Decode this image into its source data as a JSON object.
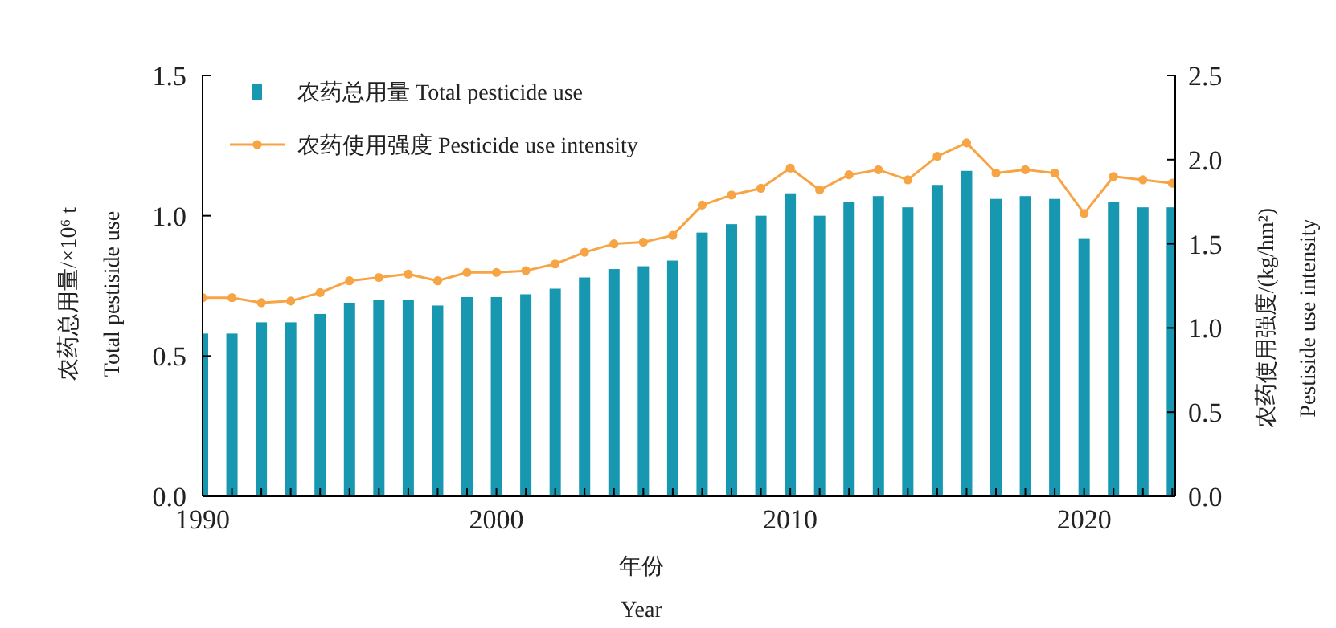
{
  "chart_data": {
    "type": "bar",
    "xlabel": "年份\nYear",
    "ylabel": "农药总用量/×10⁶ t\nTotal pestiside use",
    "y2label": "农药使用强度/(kg/hm²)\nPestiside use intensity",
    "x": [
      1990,
      1991,
      1992,
      1993,
      1994,
      1995,
      1996,
      1997,
      1998,
      1999,
      2000,
      2001,
      2002,
      2003,
      2004,
      2005,
      2006,
      2007,
      2008,
      2009,
      2010,
      2011,
      2012,
      2013,
      2014,
      2015,
      2016,
      2017,
      2018,
      2019,
      2020,
      2021,
      2022,
      2023
    ],
    "xlim": [
      1990,
      2023.1
    ],
    "xticks": [
      1990,
      {
        "value": 1991,
        "label": null
      },
      {
        "value": 1992,
        "label": null
      },
      {
        "value": 1993,
        "label": null
      },
      {
        "value": 1994,
        "label": null
      },
      {
        "value": 1995,
        "label": null
      },
      {
        "value": 1996,
        "label": null
      },
      {
        "value": 1997,
        "label": null
      },
      {
        "value": 1998,
        "label": null
      },
      {
        "value": 1999,
        "label": null
      },
      2000,
      {
        "value": 2001,
        "label": null
      },
      {
        "value": 2002,
        "label": null
      },
      {
        "value": 2003,
        "label": null
      },
      {
        "value": 2004,
        "label": null
      },
      {
        "value": 2005,
        "label": null
      },
      {
        "value": 2006,
        "label": null
      },
      {
        "value": 2007,
        "label": null
      },
      {
        "value": 2008,
        "label": null
      },
      {
        "value": 2009,
        "label": null
      },
      2010,
      {
        "value": 2011,
        "label": null
      },
      {
        "value": 2012,
        "label": null
      },
      {
        "value": 2013,
        "label": null
      },
      {
        "value": 2014,
        "label": null
      },
      {
        "value": 2015,
        "label": null
      },
      {
        "value": 2016,
        "label": null
      },
      {
        "value": 2017,
        "label": null
      },
      {
        "value": 2018,
        "label": null
      },
      {
        "value": 2019,
        "label": null
      },
      2020,
      {
        "value": 2021,
        "label": null
      },
      {
        "value": 2022,
        "label": null
      },
      {
        "value": 2023,
        "label": null
      }
    ],
    "ylim": [
      0,
      1.5
    ],
    "yticks": [
      {
        "value": 0,
        "label": "0.0"
      },
      {
        "value": 0.5,
        "label": "0.5"
      },
      {
        "value": 1,
        "label": "1.0"
      },
      {
        "value": 1.5,
        "label": "1.5"
      }
    ],
    "y2lim": [
      0,
      2.5
    ],
    "y2ticks": [
      {
        "value": 0,
        "label": "0.0"
      },
      {
        "value": 0.5,
        "label": "0.5"
      },
      {
        "value": 1,
        "label": "1.0"
      },
      {
        "value": 1.5,
        "label": "1.5"
      },
      {
        "value": 2,
        "label": "2.0"
      },
      {
        "value": 2.5,
        "label": "2.5"
      }
    ],
    "series": [
      {
        "name": "农药总用量  Total pesticide use",
        "color": "#1797b0",
        "values": [
          0.58,
          0.58,
          0.62,
          0.62,
          0.65,
          0.69,
          0.7,
          0.7,
          0.68,
          0.71,
          0.71,
          0.72,
          0.74,
          0.78,
          0.81,
          0.82,
          0.84,
          0.94,
          0.97,
          1.0,
          1.08,
          1.0,
          1.05,
          1.07,
          1.03,
          1.11,
          1.16,
          1.06,
          1.07,
          1.06,
          0.92,
          1.05,
          1.03,
          1.03
        ]
      },
      {
        "name": "农药使用强度  Pesticide use intensity",
        "type": "line",
        "axis": "y2",
        "color": "#f7a444",
        "values": [
          1.18,
          1.18,
          1.15,
          1.16,
          1.21,
          1.28,
          1.3,
          1.32,
          1.28,
          1.33,
          1.33,
          1.34,
          1.38,
          1.45,
          1.5,
          1.51,
          1.55,
          1.73,
          1.79,
          1.83,
          1.95,
          1.82,
          1.91,
          1.94,
          1.88,
          2.02,
          2.1,
          1.92,
          1.94,
          1.92,
          1.68,
          1.9,
          1.88,
          1.86
        ]
      }
    ],
    "marker": "circle",
    "line_style": "solid",
    "grid": false,
    "legend": "top left"
  }
}
